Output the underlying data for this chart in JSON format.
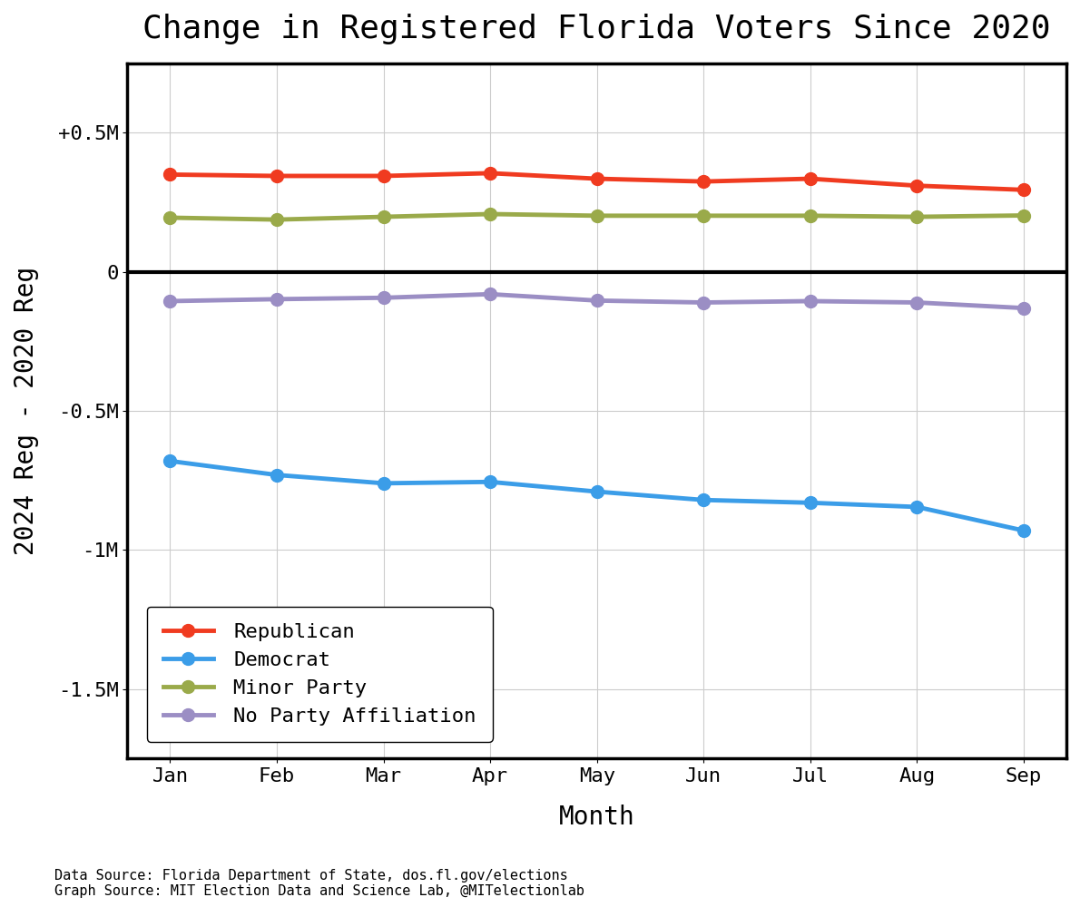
{
  "title": "Change in Registered Florida Voters Since 2020",
  "ylabel": "2024 Reg - 2020 Reg",
  "xlabel": "Month",
  "months": [
    "Jan",
    "Feb",
    "Mar",
    "Apr",
    "May",
    "Jun",
    "Jul",
    "Aug",
    "Sep"
  ],
  "republican": [
    350000,
    345000,
    345000,
    355000,
    335000,
    325000,
    335000,
    310000,
    295000
  ],
  "democrat": [
    -680000,
    -730000,
    -760000,
    -755000,
    -790000,
    -820000,
    -830000,
    -845000,
    -930000
  ],
  "minor_party": [
    195000,
    188000,
    198000,
    208000,
    202000,
    202000,
    202000,
    198000,
    203000
  ],
  "no_party": [
    -105000,
    -98000,
    -93000,
    -80000,
    -103000,
    -110000,
    -105000,
    -110000,
    -130000
  ],
  "republican_color": "#f03b20",
  "democrat_color": "#3B9DE8",
  "minor_party_color": "#9aaa4a",
  "no_party_color": "#9b8ec4",
  "background_color": "#ffffff",
  "ylim": [
    -1750000,
    750000
  ],
  "yticks": [
    -1500000,
    -1000000,
    -500000,
    0,
    500000
  ],
  "ytick_labels": [
    "-1.5M",
    "-1M",
    "-0.5M",
    "0",
    "+0.5M"
  ],
  "title_fontsize": 26,
  "axis_label_fontsize": 20,
  "tick_fontsize": 16,
  "legend_fontsize": 16,
  "line_width": 3.5,
  "marker_size": 10,
  "footer_text": "Data Source: Florida Department of State, dos.fl.gov/elections\nGraph Source: MIT Election Data and Science Lab, @MITelectionlab"
}
